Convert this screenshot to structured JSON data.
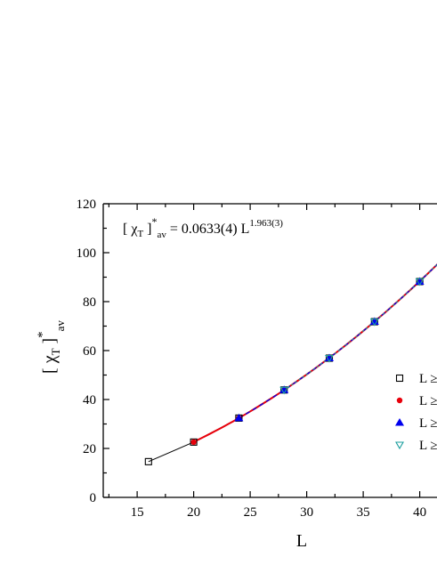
{
  "chart_data": {
    "type": "line",
    "title": "",
    "xlabel": "L",
    "ylabel": {
      "main": "[ χ",
      "sub": "T",
      "close": " ]",
      "sup": "*",
      "sub2": "av"
    },
    "xlim": [
      12,
      42
    ],
    "ylim": [
      0,
      120
    ],
    "x_ticks": [
      15,
      20,
      25,
      30,
      35,
      40
    ],
    "y_ticks": [
      0,
      20,
      40,
      60,
      80,
      100,
      120
    ],
    "grid": false,
    "fit_annotation": {
      "lhs_open": "[ χ",
      "lhs_sub": "T",
      "lhs_close": " ]",
      "lhs_sup": "*",
      "lhs_sub2": "av",
      "rhs": " = 0.0633(4) L",
      "rhs_exp": "1.963(3)",
      "prefactor": 0.0633,
      "exponent": 1.963
    },
    "legend": {
      "position": "right",
      "entries": [
        {
          "marker": "open-square",
          "label": "L ≥"
        },
        {
          "marker": "filled-circle",
          "label": "L ≥"
        },
        {
          "marker": "filled-triangle",
          "label": "L ≥"
        },
        {
          "marker": "open-down-triangle",
          "label": "L ≥"
        }
      ]
    },
    "series": [
      {
        "marker": "open-square",
        "color": "#000000",
        "x": [
          16,
          20,
          24,
          28,
          32,
          36,
          40
        ],
        "values": [
          14.6,
          22.6,
          32.4,
          43.9,
          56.9,
          71.8,
          88.2
        ]
      },
      {
        "marker": "filled-circle",
        "color": "#e8000b",
        "x": [
          20,
          24,
          28,
          32,
          36,
          40
        ],
        "values": [
          22.6,
          32.4,
          43.9,
          56.9,
          71.8,
          88.2
        ]
      },
      {
        "marker": "filled-triangle",
        "color": "#0000ee",
        "x": [
          24,
          28,
          32,
          36,
          40
        ],
        "values": [
          32.4,
          43.9,
          56.9,
          71.8,
          88.2
        ]
      },
      {
        "marker": "open-down-triangle",
        "color": "#1a9e9e",
        "x": [
          28,
          32,
          36,
          40
        ],
        "values": [
          43.9,
          56.9,
          71.8,
          88.2
        ]
      }
    ]
  }
}
